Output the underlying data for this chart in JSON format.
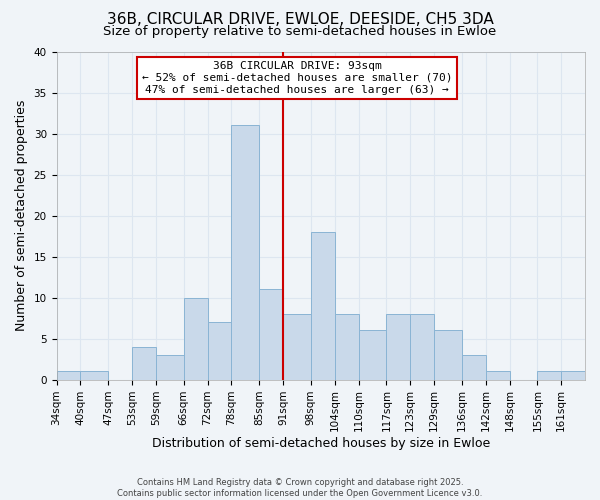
{
  "title": "36B, CIRCULAR DRIVE, EWLOE, DEESIDE, CH5 3DA",
  "subtitle": "Size of property relative to semi-detached houses in Ewloe",
  "xlabel": "Distribution of semi-detached houses by size in Ewloe",
  "ylabel": "Number of semi-detached properties",
  "bin_edges": [
    34,
    40,
    47,
    53,
    59,
    66,
    72,
    78,
    85,
    91,
    98,
    104,
    110,
    117,
    123,
    129,
    136,
    142,
    148,
    155,
    161,
    167
  ],
  "bin_labels": [
    "34sqm",
    "40sqm",
    "47sqm",
    "53sqm",
    "59sqm",
    "66sqm",
    "72sqm",
    "78sqm",
    "85sqm",
    "91sqm",
    "98sqm",
    "104sqm",
    "110sqm",
    "117sqm",
    "123sqm",
    "129sqm",
    "136sqm",
    "142sqm",
    "148sqm",
    "155sqm",
    "161sqm"
  ],
  "counts": [
    1,
    1,
    0,
    4,
    3,
    10,
    7,
    31,
    11,
    8,
    18,
    8,
    6,
    8,
    8,
    6,
    3,
    1,
    0,
    1,
    1
  ],
  "bar_facecolor": "#c9d9ea",
  "bar_edgecolor": "#8ab4d4",
  "vline_x": 91,
  "vline_color": "#cc0000",
  "ylim": [
    0,
    40
  ],
  "yticks": [
    0,
    5,
    10,
    15,
    20,
    25,
    30,
    35,
    40
  ],
  "annotation_title": "36B CIRCULAR DRIVE: 93sqm",
  "annotation_line1": "← 52% of semi-detached houses are smaller (70)",
  "annotation_line2": "47% of semi-detached houses are larger (63) →",
  "grid_color": "#dde6f0",
  "background_color": "#f0f4f8",
  "footer1": "Contains HM Land Registry data © Crown copyright and database right 2025.",
  "footer2": "Contains public sector information licensed under the Open Government Licence v3.0.",
  "title_fontsize": 11,
  "subtitle_fontsize": 9.5,
  "axis_label_fontsize": 9,
  "tick_fontsize": 7.5,
  "annotation_fontsize": 8
}
